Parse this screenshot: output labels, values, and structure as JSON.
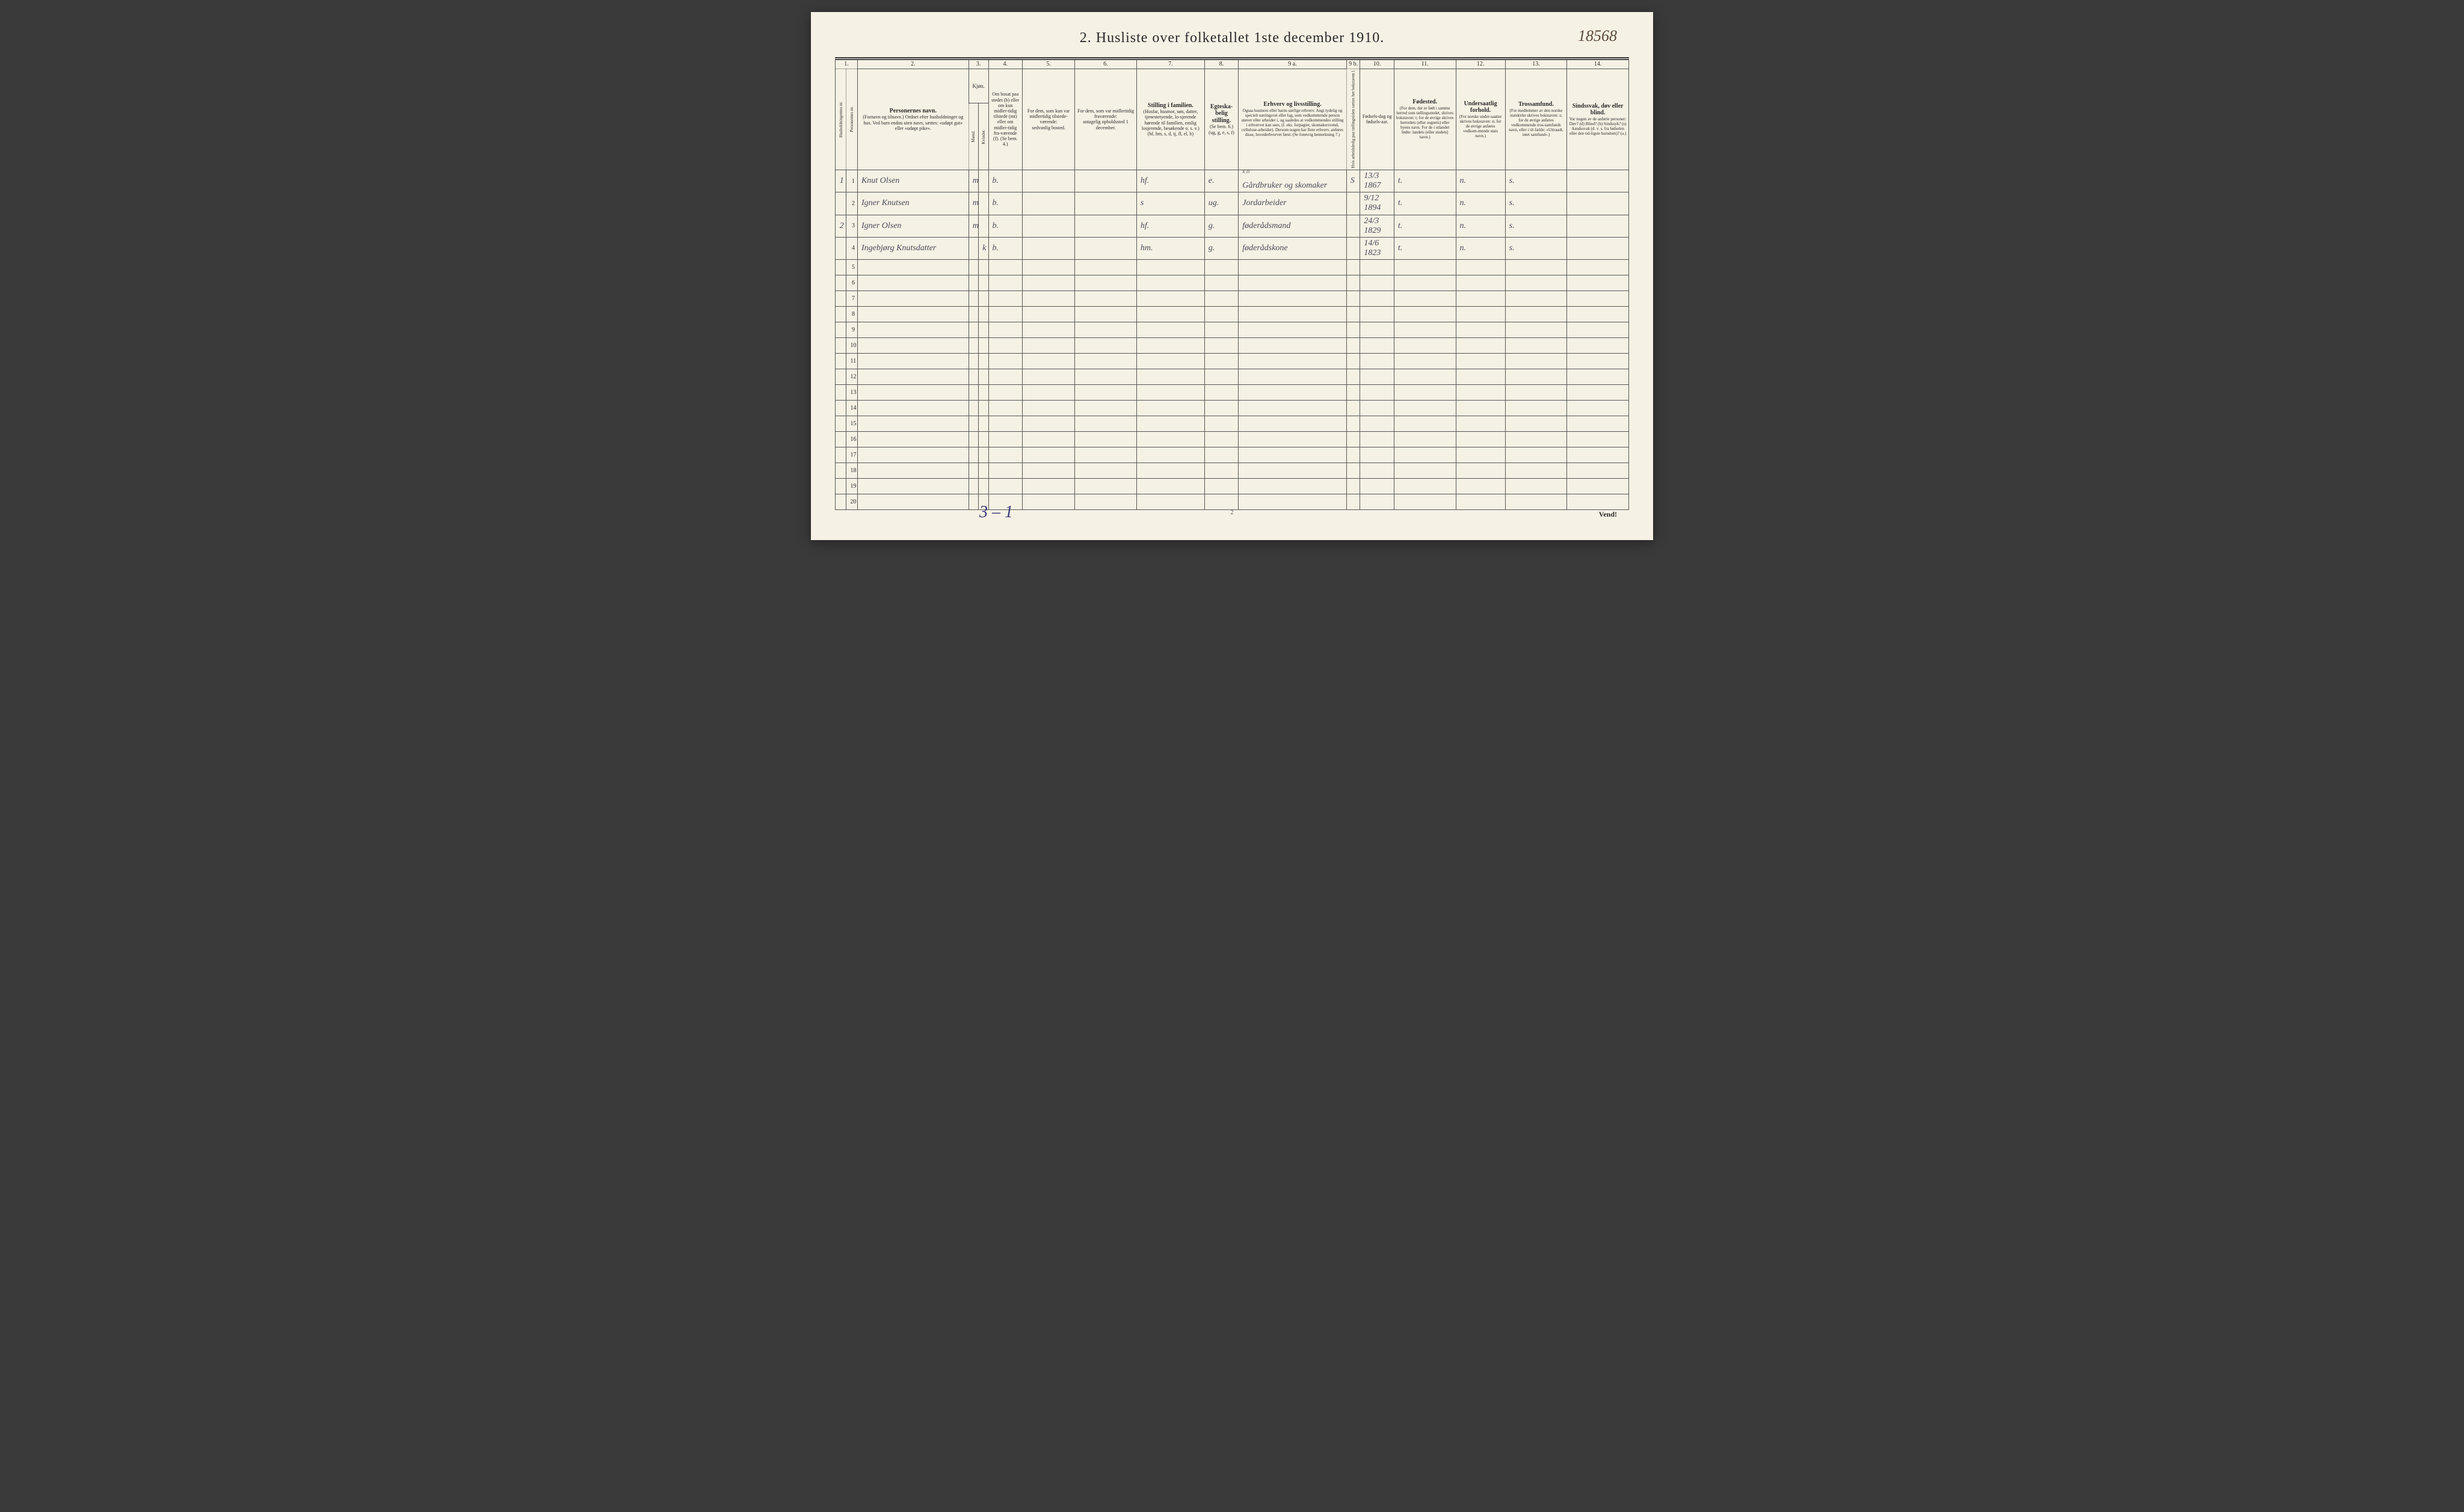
{
  "annotations": {
    "top_right": "18568",
    "bottom_left": "3 – 1",
    "vend": "Vend!",
    "page_foot": "2"
  },
  "title": "2.  Husliste over folketallet 1ste december 1910.",
  "col_numbers": [
    "1.",
    "2.",
    "3.",
    "4.",
    "5.",
    "6.",
    "7.",
    "8.",
    "9 a.",
    "9 b.",
    "10.",
    "11.",
    "12.",
    "13.",
    "14."
  ],
  "headers": {
    "c1a": "Husholdningernes nr.",
    "c1b": "Personernes nr.",
    "c2": "Personernes navn.",
    "c2_sub": "(Fornavn og tilnavn.)\nOrdnet efter husholdninger og hus.\nVed barn endnu uten navn, sættes: «udøpt gut» eller «udøpt pike».",
    "c3": "Kjøn.",
    "c3_m": "Mænd.",
    "c3_k": "Kvinder.",
    "c3_mk": "m. | k.",
    "c4": "Om bosat paa stedet (b) eller om kun midler-tidig tilstede (mt) eller om midler-tidig fra-værende (f). (Se bem. 4.)",
    "c5": "For dem, som kun var midlertidig tilstede-værende:",
    "c5_sub": "sedvanlig bosted.",
    "c6": "For dem, som var midlertidig fraværende:",
    "c6_sub": "antagelig opholdssted 1 december.",
    "c7": "Stilling i familien.",
    "c7_sub": "(Husfar, husmor, søn, datter, tjenestetyende, lo-sjerende hørende til familien, enslig losjerende, besøkende o. s. v.)\n(hf, hm, s, d, tj, fl, el, b)",
    "c8": "Egteska-belig stilling.",
    "c8_sub": "(Se bem. 6.)\n(ug, g, e, s, f)",
    "c9a": "Erhverv og livsstilling.",
    "c9a_sub": "Ogsaa husmors eller barns særlige erhverv. Angi tydelig og specielt næringsvei eller fag, som vedkommende person utøver eller arbeider i, og saaledes at vedkommendes stilling i erhvervet kan sees, (f. eks. forpagter, skomakersvend, cellulose-arbeider). Dersom nogen har flere erhverv, anføres disse, hovederhvervet først.\n(Se forøvrig bemerkning 7.)",
    "c9b": "Hvis arbeidsledig paa tællingstiden sættes her bokstaven l.",
    "c10": "Fødsels-dag og fødsels-aar.",
    "c11": "Fødested.",
    "c11_sub": "(For dem, der er født i samme herred som tællingsstedet, skrives bokstaven: t; for de øvrige skrives herredets (eller sognets) eller byens navn. For de i utlandet fødte: landets (eller stedets) navn.)",
    "c12": "Undersaatlig forhold.",
    "c12_sub": "(For norske under-saatter skrives bokstaven: n; for de øvrige anføres vedkom-mende stats navn.)",
    "c13": "Trossamfund.",
    "c13_sub": "(For medlemmer av den norske statskirke skrives bokstaven: s; for de øvrige anføres vedkommende tros-samfunds navn, eller i til-fælde: «Uttraadt, intet samfund».)",
    "c14": "Sindssvak, døv eller blind.",
    "c14_sub": "Var nogen av de anførte personer:\nDøv?        (d)\nBlind?      (b)\nSindssyk?  (s)\nAandssvak (d. v. s. fra fødselen eller den tid-ligste barndom)? (a.)"
  },
  "rows": [
    {
      "hh": "1",
      "pn": "1",
      "name": "Knut Olsen",
      "m": "m",
      "k": "",
      "bosat": "b.",
      "c5": "",
      "c6": "",
      "stilling": "hf.",
      "egte": "e.",
      "erhverv": "Gårdbruker og skomaker",
      "c9b": "S",
      "fdato": "13/3 1867",
      "fsted": "t.",
      "under": "n.",
      "tros": "s.",
      "c14": "",
      "xo": "x o"
    },
    {
      "hh": "",
      "pn": "2",
      "name": "Igner Knutsen",
      "m": "m",
      "k": "",
      "bosat": "b.",
      "c5": "",
      "c6": "",
      "stilling": "s",
      "egte": "ug.",
      "erhverv": "Jordarbeider",
      "c9b": "",
      "fdato": "9/12 1894",
      "fsted": "t.",
      "under": "n.",
      "tros": "s.",
      "c14": ""
    },
    {
      "hh": "2",
      "pn": "3",
      "name": "Igner Olsen",
      "m": "m",
      "k": "",
      "bosat": "b.",
      "c5": "",
      "c6": "",
      "stilling": "hf.",
      "egte": "g.",
      "erhverv": "føderådsmand",
      "c9b": "",
      "fdato": "24/3 1829",
      "fsted": "t.",
      "under": "n.",
      "tros": "s.",
      "c14": ""
    },
    {
      "hh": "",
      "pn": "4",
      "name": "Ingebjørg Knutsdatter",
      "m": "",
      "k": "k",
      "bosat": "b.",
      "c5": "",
      "c6": "",
      "stilling": "hm.",
      "egte": "g.",
      "erhverv": "føderådskone",
      "c9b": "",
      "fdato": "14/6 1823",
      "fsted": "t.",
      "under": "n.",
      "tros": "s.",
      "c14": ""
    }
  ],
  "empty_row_count": 16,
  "col_widths": {
    "c1a": 18,
    "c1b": 18,
    "c2": 180,
    "c3m": 16,
    "c3k": 16,
    "c4": 55,
    "c5": 85,
    "c6": 100,
    "c7": 110,
    "c8": 55,
    "c9a": 175,
    "c9b": 22,
    "c10": 55,
    "c11": 100,
    "c12": 80,
    "c13": 100,
    "c14": 100
  },
  "colors": {
    "paper": "#f5f1e4",
    "ink": "#2a2a2a",
    "script": "#4a4a5a",
    "blue_ink": "#3a3a7a",
    "border": "#555555",
    "background": "#3a3a3a"
  },
  "typography": {
    "title_fontsize": 24,
    "header_fontsize": 9,
    "header_small_fontsize": 8,
    "cell_script_fontsize": 14,
    "annotation_fontsize": 26
  }
}
